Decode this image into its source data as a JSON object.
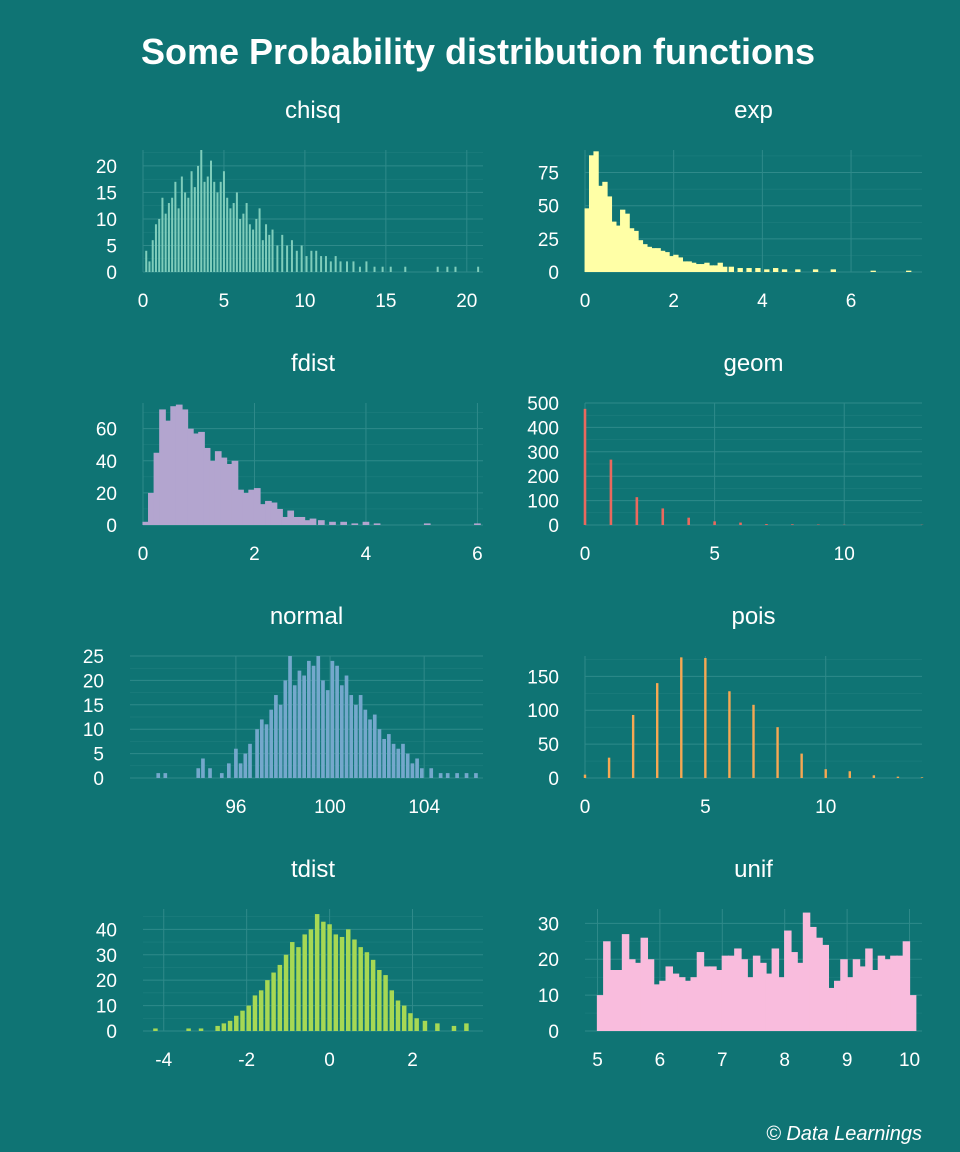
{
  "title": "Some Probability distribution functions",
  "caption": "© Data Learnings",
  "colors": {
    "background": "#0f7474",
    "grid": "#2f8a8a",
    "text": "#ffffff"
  },
  "chart_data": [
    {
      "type": "bar",
      "title": "chisq",
      "color": "#7fcdbb",
      "xlim": [
        0,
        21
      ],
      "ylim": [
        0,
        23
      ],
      "xticks": [
        0,
        5,
        10,
        15,
        20
      ],
      "yticks": [
        0,
        5,
        10,
        15,
        20
      ],
      "bar_width": 0.1,
      "x": [
        0.2,
        0.4,
        0.6,
        0.8,
        1.0,
        1.2,
        1.4,
        1.6,
        1.8,
        2.0,
        2.2,
        2.4,
        2.6,
        2.8,
        3.0,
        3.2,
        3.4,
        3.6,
        3.8,
        4.0,
        4.2,
        4.4,
        4.6,
        4.8,
        5.0,
        5.2,
        5.4,
        5.6,
        5.8,
        6.0,
        6.2,
        6.4,
        6.6,
        6.8,
        7.0,
        7.2,
        7.4,
        7.6,
        7.8,
        8.0,
        8.3,
        8.6,
        8.9,
        9.2,
        9.5,
        9.8,
        10.1,
        10.4,
        10.7,
        11.0,
        11.3,
        11.6,
        11.9,
        12.2,
        12.6,
        13.0,
        13.4,
        13.8,
        14.3,
        14.8,
        15.3,
        16.2,
        18.2,
        18.8,
        19.3,
        20.7
      ],
      "values": [
        4,
        2,
        6,
        9,
        10,
        14,
        11,
        13,
        14,
        17,
        12,
        18,
        15,
        14,
        19,
        16,
        20,
        23,
        17,
        18,
        21,
        17,
        15,
        17,
        19,
        14,
        12,
        13,
        15,
        10,
        11,
        13,
        9,
        8,
        10,
        12,
        6,
        9,
        7,
        8,
        5,
        7,
        5,
        6,
        4,
        5,
        3,
        4,
        4,
        3,
        3,
        2,
        3,
        2,
        2,
        2,
        1,
        2,
        1,
        1,
        1,
        1,
        1,
        1,
        1,
        1
      ]
    },
    {
      "type": "bar",
      "title": "exp",
      "color": "#ffffa6",
      "xlim": [
        0,
        7.6
      ],
      "ylim": [
        0,
        92
      ],
      "xticks": [
        0,
        2,
        4,
        6
      ],
      "yticks": [
        0,
        25,
        50,
        75
      ],
      "bar_width": 0.1,
      "x": [
        0.05,
        0.15,
        0.25,
        0.35,
        0.45,
        0.55,
        0.65,
        0.75,
        0.85,
        0.95,
        1.05,
        1.15,
        1.25,
        1.35,
        1.45,
        1.55,
        1.65,
        1.75,
        1.85,
        1.95,
        2.05,
        2.15,
        2.25,
        2.35,
        2.45,
        2.55,
        2.65,
        2.75,
        2.85,
        2.95,
        3.05,
        3.15,
        3.3,
        3.5,
        3.7,
        3.9,
        4.1,
        4.3,
        4.5,
        4.8,
        5.2,
        5.6,
        6.5,
        7.3
      ],
      "values": [
        48,
        88,
        91,
        65,
        68,
        57,
        38,
        35,
        47,
        44,
        33,
        31,
        24,
        21,
        19,
        18,
        18,
        16,
        15,
        12,
        13,
        11,
        8,
        8,
        7,
        6,
        6,
        7,
        5,
        5,
        7,
        4,
        4,
        3,
        3,
        3,
        2,
        3,
        2,
        2,
        2,
        2,
        1,
        1
      ]
    },
    {
      "type": "bar",
      "title": "fdist",
      "color": "#b3a5cf",
      "xlim": [
        0,
        6.1
      ],
      "ylim": [
        0,
        76
      ],
      "xticks": [
        0,
        2,
        4,
        6
      ],
      "yticks": [
        0,
        20,
        40,
        60
      ],
      "bar_width": 0.1,
      "x": [
        0.05,
        0.15,
        0.25,
        0.35,
        0.45,
        0.55,
        0.65,
        0.75,
        0.85,
        0.95,
        1.05,
        1.15,
        1.25,
        1.35,
        1.45,
        1.55,
        1.65,
        1.75,
        1.85,
        1.95,
        2.05,
        2.15,
        2.25,
        2.35,
        2.45,
        2.55,
        2.65,
        2.75,
        2.85,
        2.95,
        3.05,
        3.2,
        3.4,
        3.6,
        3.8,
        4.0,
        4.2,
        5.1,
        6.0
      ],
      "values": [
        2,
        20,
        45,
        72,
        65,
        74,
        75,
        72,
        60,
        57,
        58,
        48,
        40,
        46,
        42,
        38,
        40,
        22,
        20,
        22,
        23,
        13,
        15,
        14,
        10,
        5,
        9,
        5,
        5,
        3,
        4,
        3,
        2,
        2,
        1,
        2,
        1,
        1,
        1
      ]
    },
    {
      "type": "bar",
      "title": "geom",
      "color": "#e9695e",
      "xlim": [
        0,
        13
      ],
      "ylim": [
        0,
        500
      ],
      "xticks": [
        0,
        5,
        10
      ],
      "yticks": [
        0,
        100,
        200,
        300,
        400,
        500
      ],
      "bar_width": 0.1,
      "x": [
        0,
        1,
        2,
        3,
        4,
        5,
        6,
        7,
        8,
        9,
        10,
        13
      ],
      "values": [
        476,
        268,
        114,
        68,
        30,
        15,
        10,
        4,
        3,
        2,
        1,
        1
      ]
    },
    {
      "type": "bar",
      "title": "normal",
      "color": "#74a8cc",
      "xlim": [
        91.5,
        106.5
      ],
      "ylim": [
        0,
        25
      ],
      "xticks": [
        96,
        100,
        104
      ],
      "yticks": [
        0,
        5,
        10,
        15,
        20,
        25
      ],
      "bar_width": 0.13,
      "x": [
        92.7,
        93.0,
        94.4,
        94.6,
        94.9,
        95.4,
        95.7,
        96.0,
        96.2,
        96.4,
        96.6,
        96.9,
        97.1,
        97.3,
        97.5,
        97.7,
        97.9,
        98.1,
        98.3,
        98.5,
        98.7,
        98.9,
        99.1,
        99.3,
        99.5,
        99.7,
        99.9,
        100.1,
        100.3,
        100.5,
        100.7,
        100.9,
        101.1,
        101.3,
        101.5,
        101.7,
        101.9,
        102.1,
        102.3,
        102.5,
        102.7,
        102.9,
        103.1,
        103.3,
        103.5,
        103.7,
        103.9,
        104.3,
        104.7,
        105.0,
        105.4,
        105.8,
        106.2
      ],
      "values": [
        1,
        1,
        2,
        4,
        2,
        1,
        3,
        6,
        3,
        5,
        7,
        10,
        12,
        11,
        14,
        17,
        15,
        20,
        25,
        19,
        22,
        21,
        24,
        23,
        25,
        20,
        18,
        24,
        23,
        19,
        21,
        17,
        15,
        17,
        14,
        12,
        13,
        10,
        8,
        9,
        7,
        6,
        7,
        5,
        3,
        4,
        2,
        2,
        1,
        1,
        1,
        1,
        1
      ]
    },
    {
      "type": "bar",
      "title": "pois",
      "color": "#f6a853",
      "xlim": [
        0,
        14
      ],
      "ylim": [
        0,
        180
      ],
      "xticks": [
        0,
        5,
        10
      ],
      "yticks": [
        0,
        50,
        100,
        150
      ],
      "bar_width": 0.1,
      "x": [
        0,
        1,
        2,
        3,
        4,
        5,
        6,
        7,
        8,
        9,
        10,
        11,
        12,
        13,
        14
      ],
      "values": [
        5,
        30,
        93,
        140,
        178,
        177,
        128,
        108,
        75,
        36,
        13,
        10,
        4,
        2,
        1
      ]
    },
    {
      "type": "bar",
      "title": "tdist",
      "color": "#a6d854",
      "xlim": [
        -4.5,
        3.7
      ],
      "ylim": [
        0,
        48
      ],
      "xticks": [
        -4,
        -2,
        0,
        2
      ],
      "yticks": [
        0,
        10,
        20,
        30,
        40
      ],
      "bar_width": 0.09,
      "x": [
        -4.2,
        -3.4,
        -3.1,
        -2.7,
        -2.55,
        -2.4,
        -2.25,
        -2.1,
        -1.95,
        -1.8,
        -1.65,
        -1.5,
        -1.35,
        -1.2,
        -1.05,
        -0.9,
        -0.75,
        -0.6,
        -0.45,
        -0.3,
        -0.15,
        0.0,
        0.15,
        0.3,
        0.45,
        0.6,
        0.75,
        0.9,
        1.05,
        1.2,
        1.35,
        1.5,
        1.65,
        1.8,
        1.95,
        2.1,
        2.3,
        2.6,
        3.0,
        3.3
      ],
      "values": [
        1,
        1,
        1,
        2,
        3,
        4,
        6,
        8,
        10,
        14,
        16,
        20,
        23,
        26,
        30,
        35,
        33,
        38,
        40,
        46,
        43,
        42,
        38,
        37,
        40,
        36,
        33,
        31,
        28,
        24,
        22,
        16,
        12,
        10,
        7,
        5,
        4,
        3,
        2,
        3
      ]
    },
    {
      "type": "bar",
      "title": "unif",
      "color": "#f9bcdd",
      "xlim": [
        4.8,
        10.2
      ],
      "ylim": [
        0,
        34
      ],
      "xticks": [
        5,
        6,
        7,
        8,
        9,
        10
      ],
      "yticks": [
        0,
        10,
        20,
        30
      ],
      "bar_width": 0.1,
      "x": [
        5.05,
        5.15,
        5.25,
        5.35,
        5.45,
        5.55,
        5.65,
        5.75,
        5.85,
        5.95,
        6.05,
        6.15,
        6.25,
        6.35,
        6.45,
        6.55,
        6.65,
        6.75,
        6.85,
        6.95,
        7.05,
        7.15,
        7.25,
        7.35,
        7.45,
        7.55,
        7.65,
        7.75,
        7.85,
        7.95,
        8.05,
        8.15,
        8.25,
        8.35,
        8.45,
        8.55,
        8.65,
        8.75,
        8.85,
        8.95,
        9.05,
        9.15,
        9.25,
        9.35,
        9.45,
        9.55,
        9.65,
        9.75,
        9.85,
        9.95,
        10.05
      ],
      "values": [
        10,
        25,
        17,
        17,
        27,
        20,
        19,
        26,
        20,
        13,
        14,
        18,
        16,
        15,
        14,
        15,
        22,
        18,
        18,
        17,
        21,
        21,
        23,
        20,
        15,
        21,
        19,
        16,
        23,
        15,
        28,
        22,
        19,
        33,
        29,
        26,
        24,
        12,
        14,
        20,
        15,
        20,
        18,
        23,
        17,
        21,
        20,
        21,
        21,
        25,
        10
      ]
    }
  ]
}
